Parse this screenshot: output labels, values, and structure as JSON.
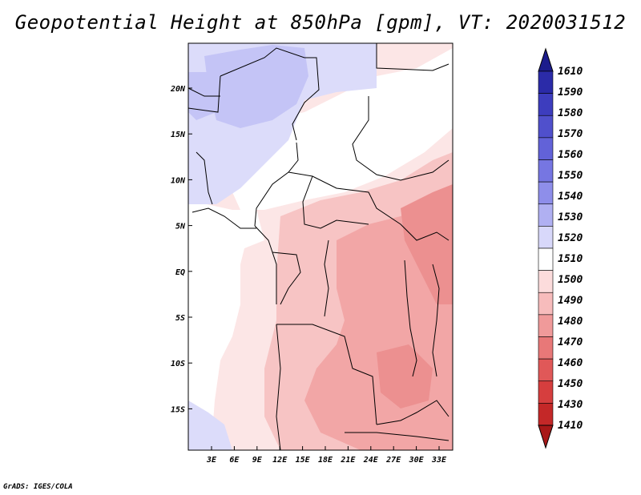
{
  "title": "Geopotential Height at 850hPa [gpm], VT: 2020031512",
  "footer": "GrADS: IGES/COLA",
  "map": {
    "lat_labels": [
      "20N",
      "15N",
      "10N",
      "5N",
      "EQ",
      "5S",
      "10S",
      "15S"
    ],
    "lon_labels": [
      "3E",
      "6E",
      "9E",
      "12E",
      "15E",
      "18E",
      "21E",
      "24E",
      "27E",
      "30E",
      "33E"
    ],
    "border_color": "#000000"
  },
  "colorbar": {
    "levels": [
      "1610",
      "1590",
      "1580",
      "1570",
      "1560",
      "1550",
      "1540",
      "1530",
      "1520",
      "1510",
      "1500",
      "1490",
      "1480",
      "1470",
      "1460",
      "1450",
      "1430",
      "1410"
    ],
    "colors": [
      "#1c1c8c",
      "#2b2ba8",
      "#3d3dbe",
      "#5050cc",
      "#6262d8",
      "#7676e2",
      "#8e8eea",
      "#b0b0f2",
      "#d8d8fa",
      "#ffffff",
      "#fcdcdc",
      "#f7bcbc",
      "#f09a9a",
      "#e87878",
      "#e05858",
      "#d63e3e",
      "#c42828",
      "#a81818"
    ]
  }
}
